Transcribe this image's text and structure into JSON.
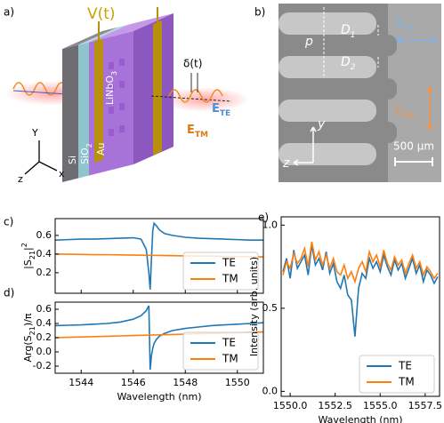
{
  "panels": {
    "a": "a)",
    "b": "b)",
    "c": "c)",
    "d": "d)",
    "e": "e)"
  },
  "illustration": {
    "voltage": "V(t)",
    "delay": "δ(t)",
    "e_te": {
      "main": "E",
      "sub": "TE"
    },
    "e_tm": {
      "main": "E",
      "sub": "TM"
    },
    "layers": {
      "si": "Si",
      "sio2": {
        "main": "SiO",
        "sub": "2"
      },
      "linbo3": {
        "main": "LiNbO",
        "sub": "3"
      },
      "au": "Au"
    },
    "axes": {
      "y": "Y",
      "x": "x",
      "z": "z"
    }
  },
  "micrograph": {
    "pitch": "p",
    "d1": {
      "main": "D",
      "sub": "1"
    },
    "d2": {
      "main": "D",
      "sub": "2"
    },
    "e_te": {
      "main": "E",
      "sub": "TE"
    },
    "e_tm": {
      "main": "E",
      "sub": "TM"
    },
    "scale": "500 μm",
    "axes": {
      "y": "y",
      "z": "z"
    }
  },
  "chart_data": [
    {
      "type": "line",
      "ylabel": {
        "text": "|S",
        "sub": "21",
        "end": "|",
        "sup": "2"
      },
      "x": [
        1543,
        1543.5,
        1544,
        1544.5,
        1545,
        1545.5,
        1546,
        1546.3,
        1546.5,
        1546.6,
        1546.65,
        1546.7,
        1546.75,
        1546.8,
        1546.9,
        1547,
        1547.2,
        1547.5,
        1548,
        1548.5,
        1549,
        1549.5,
        1550,
        1550.5,
        1551
      ],
      "series": [
        {
          "name": "TE",
          "color": "#1f77b4",
          "values": [
            0.55,
            0.555,
            0.56,
            0.56,
            0.565,
            0.57,
            0.575,
            0.56,
            0.45,
            0.2,
            0.02,
            0.35,
            0.65,
            0.73,
            0.7,
            0.66,
            0.62,
            0.6,
            0.58,
            0.57,
            0.565,
            0.56,
            0.555,
            0.55,
            0.55
          ]
        },
        {
          "name": "TM",
          "color": "#ff7f0e",
          "values": [
            0.4,
            0.398,
            0.396,
            0.394,
            0.393,
            0.391,
            0.389,
            0.388,
            0.387,
            0.387,
            0.386,
            0.386,
            0.386,
            0.386,
            0.385,
            0.385,
            0.384,
            0.383,
            0.381,
            0.379,
            0.378,
            0.376,
            0.374,
            0.372,
            0.37
          ]
        }
      ],
      "xlim": [
        1543,
        1551
      ],
      "xticks": [
        1544,
        1546,
        1548,
        1550
      ],
      "ylim": [
        -0.02,
        0.78
      ],
      "yticks": [
        0.2,
        0.4,
        0.6
      ],
      "legend": "lower right"
    },
    {
      "type": "line",
      "ylabel": {
        "text": "Arg(S",
        "sub": "21",
        "end": ")/π"
      },
      "xlabel": "Wavelength (nm)",
      "x": [
        1543,
        1543.5,
        1544,
        1544.5,
        1545,
        1545.5,
        1546,
        1546.3,
        1546.5,
        1546.6,
        1546.65,
        1546.7,
        1546.75,
        1546.8,
        1546.9,
        1547,
        1547.2,
        1547.5,
        1548,
        1548.5,
        1549,
        1549.5,
        1550,
        1550.5,
        1551
      ],
      "series": [
        {
          "name": "TE",
          "color": "#1f77b4",
          "values": [
            0.37,
            0.375,
            0.38,
            0.39,
            0.4,
            0.42,
            0.46,
            0.51,
            0.58,
            0.65,
            -0.25,
            -0.05,
            0.05,
            0.12,
            0.18,
            0.22,
            0.26,
            0.3,
            0.33,
            0.35,
            0.37,
            0.38,
            0.39,
            0.4,
            0.41
          ]
        },
        {
          "name": "TM",
          "color": "#ff7f0e",
          "values": [
            0.2,
            0.205,
            0.21,
            0.215,
            0.22,
            0.225,
            0.23,
            0.233,
            0.235,
            0.236,
            0.237,
            0.237,
            0.238,
            0.238,
            0.239,
            0.24,
            0.242,
            0.245,
            0.25,
            0.255,
            0.26,
            0.265,
            0.27,
            0.275,
            0.28
          ]
        }
      ],
      "xlim": [
        1543,
        1551
      ],
      "xticks": [
        1544,
        1546,
        1548,
        1550
      ],
      "ylim": [
        -0.3,
        0.7
      ],
      "yticks": [
        -0.2,
        {
          "value": 0,
          "label": "0.0"
        },
        0.2,
        0.4,
        0.6
      ],
      "legend": "lower right"
    },
    {
      "type": "line",
      "ylabel": {
        "text": "Intensity (arb. units)"
      },
      "xlabel": "Wavelength (nm)",
      "x": [
        1549.6,
        1549.8,
        1550.0,
        1550.2,
        1550.4,
        1550.6,
        1550.8,
        1551.0,
        1551.2,
        1551.4,
        1551.6,
        1551.8,
        1552.0,
        1552.2,
        1552.4,
        1552.6,
        1552.8,
        1553.0,
        1553.2,
        1553.4,
        1553.6,
        1553.8,
        1554.0,
        1554.2,
        1554.4,
        1554.6,
        1554.8,
        1555.0,
        1555.2,
        1555.4,
        1555.6,
        1555.8,
        1556.0,
        1556.2,
        1556.4,
        1556.6,
        1556.8,
        1557.0,
        1557.2,
        1557.4,
        1557.6,
        1557.8,
        1558.0,
        1558.2
      ],
      "series": [
        {
          "name": "TE",
          "color": "#1f77b4",
          "values": [
            0.72,
            0.8,
            0.68,
            0.85,
            0.74,
            0.78,
            0.82,
            0.7,
            0.88,
            0.76,
            0.8,
            0.73,
            0.84,
            0.71,
            0.77,
            0.66,
            0.62,
            0.7,
            0.58,
            0.55,
            0.33,
            0.62,
            0.71,
            0.68,
            0.8,
            0.74,
            0.78,
            0.72,
            0.82,
            0.75,
            0.7,
            0.79,
            0.73,
            0.77,
            0.68,
            0.74,
            0.8,
            0.71,
            0.76,
            0.66,
            0.73,
            0.7,
            0.65,
            0.69
          ]
        },
        {
          "name": "TM",
          "color": "#ff7f0e",
          "values": [
            0.7,
            0.78,
            0.74,
            0.83,
            0.77,
            0.8,
            0.86,
            0.75,
            0.9,
            0.79,
            0.84,
            0.76,
            0.82,
            0.74,
            0.8,
            0.72,
            0.7,
            0.76,
            0.68,
            0.72,
            0.66,
            0.74,
            0.78,
            0.72,
            0.84,
            0.78,
            0.82,
            0.75,
            0.85,
            0.77,
            0.73,
            0.81,
            0.76,
            0.79,
            0.71,
            0.77,
            0.82,
            0.74,
            0.78,
            0.7,
            0.75,
            0.72,
            0.68,
            0.71
          ]
        }
      ],
      "xlim": [
        1549.5,
        1558.3
      ],
      "xticks": [
        {
          "value": 1550,
          "label": "1550.0"
        },
        {
          "value": 1552.5,
          "label": "1552.5"
        },
        {
          "value": 1555,
          "label": "1555.0"
        },
        {
          "value": 1557.5,
          "label": "1557.5"
        }
      ],
      "ylim": [
        -0.03,
        1.05
      ],
      "yticks": [
        {
          "value": 0,
          "label": "0.0"
        },
        0.5,
        {
          "value": 1,
          "label": "1.0"
        }
      ],
      "legend": "lower right"
    }
  ]
}
